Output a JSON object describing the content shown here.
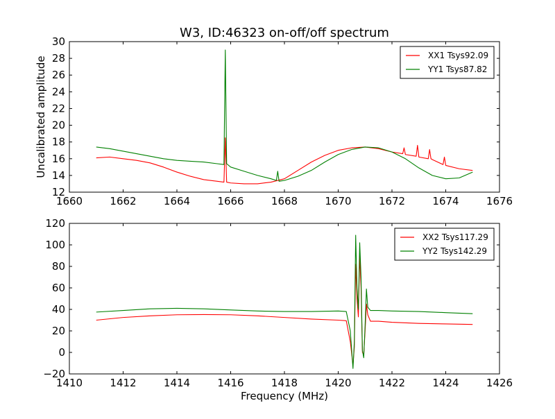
{
  "chart_data": [
    {
      "type": "line",
      "title": "W3, ID:46323 on-off/off spectrum",
      "xlabel": "",
      "ylabel": "Uncalibrated amplitude",
      "xlim": [
        1660,
        1676
      ],
      "ylim": [
        12,
        30
      ],
      "xticks": [
        1660,
        1662,
        1664,
        1666,
        1668,
        1670,
        1672,
        1674,
        1676
      ],
      "yticks": [
        12,
        14,
        16,
        18,
        20,
        22,
        24,
        26,
        28,
        30
      ],
      "legend": "top-right",
      "series": [
        {
          "name": "XX1 Tsys92.09",
          "color": "#ff0000",
          "x": [
            1661.0,
            1661.5,
            1662.0,
            1662.5,
            1663.0,
            1663.5,
            1664.0,
            1664.5,
            1665.0,
            1665.5,
            1665.75,
            1665.8,
            1665.85,
            1666.0,
            1666.5,
            1667.0,
            1667.5,
            1668.0,
            1668.5,
            1669.0,
            1669.5,
            1670.0,
            1670.5,
            1671.0,
            1671.5,
            1672.0,
            1672.4,
            1672.45,
            1672.5,
            1672.9,
            1672.95,
            1673.0,
            1673.35,
            1673.4,
            1673.45,
            1673.5,
            1673.9,
            1673.95,
            1674.0,
            1674.5,
            1675.0
          ],
          "y": [
            16.1,
            16.2,
            16.0,
            15.8,
            15.5,
            15.0,
            14.4,
            13.9,
            13.5,
            13.3,
            13.2,
            18.5,
            13.2,
            13.1,
            13.0,
            13.0,
            13.2,
            13.6,
            14.6,
            15.6,
            16.4,
            17.0,
            17.3,
            17.4,
            17.2,
            16.8,
            16.6,
            17.3,
            16.5,
            16.3,
            17.6,
            16.2,
            16.0,
            17.1,
            16.0,
            15.9,
            15.3,
            16.2,
            15.2,
            14.8,
            14.6
          ]
        },
        {
          "name": "YY1 Tsys87.82",
          "color": "#008000",
          "x": [
            1661.0,
            1661.5,
            1662.0,
            1662.5,
            1663.0,
            1663.5,
            1664.0,
            1664.5,
            1665.0,
            1665.5,
            1665.75,
            1665.8,
            1665.85,
            1666.0,
            1666.5,
            1667.0,
            1667.5,
            1667.7,
            1667.75,
            1667.8,
            1668.0,
            1668.5,
            1669.0,
            1669.5,
            1670.0,
            1670.5,
            1671.0,
            1671.5,
            1672.0,
            1672.5,
            1673.0,
            1673.5,
            1674.0,
            1674.5,
            1675.0
          ],
          "y": [
            17.4,
            17.2,
            16.9,
            16.6,
            16.3,
            16.0,
            15.8,
            15.7,
            15.6,
            15.4,
            15.3,
            29.0,
            15.4,
            15.0,
            14.5,
            14.0,
            13.6,
            13.4,
            14.5,
            13.3,
            13.4,
            13.9,
            14.6,
            15.6,
            16.5,
            17.1,
            17.4,
            17.3,
            16.8,
            16.0,
            14.9,
            14.0,
            13.6,
            13.7,
            14.4
          ]
        }
      ]
    },
    {
      "type": "line",
      "title": "",
      "xlabel": "Frequency (MHz)",
      "ylabel": "",
      "xlim": [
        1410,
        1426
      ],
      "ylim": [
        -20,
        120
      ],
      "xticks": [
        1410,
        1412,
        1414,
        1416,
        1418,
        1420,
        1422,
        1424,
        1426
      ],
      "yticks": [
        -20,
        0,
        20,
        40,
        60,
        80,
        100,
        120
      ],
      "legend": "top-right",
      "series": [
        {
          "name": "XX2 Tsys117.29",
          "color": "#ff0000",
          "x": [
            1411.0,
            1412.0,
            1413.0,
            1414.0,
            1415.0,
            1416.0,
            1417.0,
            1418.0,
            1419.0,
            1420.0,
            1420.3,
            1420.45,
            1420.55,
            1420.6,
            1420.65,
            1420.7,
            1420.75,
            1420.8,
            1420.85,
            1420.9,
            1420.95,
            1421.0,
            1421.05,
            1421.1,
            1421.2,
            1421.5,
            1422.0,
            1423.0,
            1424.0,
            1425.0
          ],
          "y": [
            30,
            32.5,
            34,
            35,
            35.2,
            35,
            34,
            32.5,
            31,
            30,
            29.5,
            10,
            -12,
            5,
            82,
            50,
            33,
            90,
            60,
            0,
            -2,
            20,
            45,
            35,
            29,
            29,
            28,
            27,
            26.5,
            26
          ]
        },
        {
          "name": "YY2 Tsys142.29",
          "color": "#008000",
          "x": [
            1411.0,
            1412.0,
            1413.0,
            1414.0,
            1415.0,
            1416.0,
            1417.0,
            1418.0,
            1419.0,
            1420.0,
            1420.3,
            1420.45,
            1420.55,
            1420.6,
            1420.65,
            1420.7,
            1420.75,
            1420.8,
            1420.85,
            1420.9,
            1420.95,
            1421.0,
            1421.05,
            1421.1,
            1421.2,
            1421.5,
            1422.0,
            1423.0,
            1424.0,
            1425.0
          ],
          "y": [
            37.5,
            39,
            40.5,
            41,
            40.5,
            39.5,
            38.5,
            38,
            38,
            38.5,
            38,
            20,
            -15,
            10,
            109,
            60,
            40,
            102,
            70,
            2,
            -5,
            25,
            59,
            42,
            39,
            39,
            38.5,
            38,
            37,
            36
          ]
        }
      ]
    }
  ]
}
